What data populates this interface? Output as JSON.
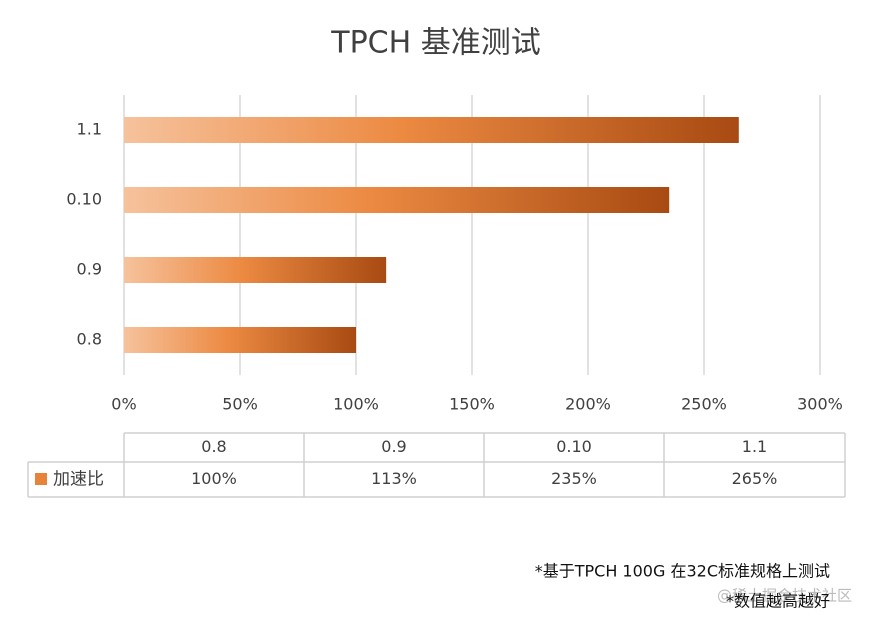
{
  "chart_data": {
    "type": "bar",
    "orientation": "horizontal",
    "title": "TPCH 基准测试",
    "categories": [
      "0.8",
      "0.9",
      "0.10",
      "1.1"
    ],
    "series": [
      {
        "name": "加速比",
        "color": "#e8833a",
        "values": [
          100,
          113,
          235,
          265
        ],
        "value_labels": [
          "100%",
          "113%",
          "235%",
          "265%"
        ]
      }
    ],
    "xlim": [
      0,
      300
    ],
    "xticks": [
      {
        "value": 0,
        "label": "0%"
      },
      {
        "value": 50,
        "label": "50%"
      },
      {
        "value": 100,
        "label": "100%"
      },
      {
        "value": 150,
        "label": "150%"
      },
      {
        "value": 200,
        "label": "200%"
      },
      {
        "value": 250,
        "label": "250%"
      },
      {
        "value": 300,
        "label": "300%"
      }
    ],
    "grid": true,
    "annotations": [
      "*基于TPCH 100G 在32C标准规格上测试",
      "*数值越高越好"
    ],
    "watermark": "@稀土掘金技术社区"
  }
}
